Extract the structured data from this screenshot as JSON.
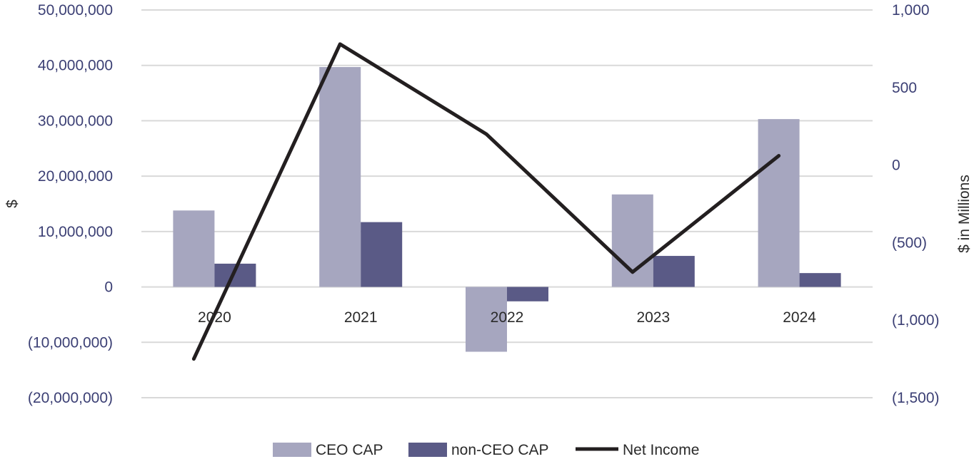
{
  "chart_data": {
    "type": "bar",
    "title": "",
    "categories": [
      "2020",
      "2021",
      "2022",
      "2023",
      "2024"
    ],
    "series": [
      {
        "name": "CEO CAP",
        "type": "bar",
        "axis": "left",
        "color": "#a6a6bf",
        "values": [
          13800000,
          39700000,
          -11700000,
          16700000,
          30300000
        ]
      },
      {
        "name": "non-CEO CAP",
        "type": "bar",
        "axis": "left",
        "color": "#5a5a86",
        "values": [
          4200000,
          11700000,
          -2600000,
          5600000,
          2500000
        ]
      },
      {
        "name": "Net Income",
        "type": "line",
        "axis": "right",
        "color": "#231f20",
        "values": [
          -1250,
          780,
          200,
          -690,
          60
        ]
      }
    ],
    "y_left": {
      "label": "$",
      "range": [
        -20000000,
        50000000
      ],
      "ticks": [
        50000000,
        40000000,
        30000000,
        20000000,
        10000000,
        0,
        -10000000,
        -20000000
      ],
      "tick_labels": [
        "50,000,000",
        "40,000,000",
        "30,000,000",
        "20,000,000",
        "10,000,000",
        "0",
        "(10,000,000)",
        "(20,000,000)"
      ]
    },
    "y_right": {
      "label": "$ in Millions",
      "range": [
        -1500,
        1000
      ],
      "ticks": [
        1000,
        500,
        0,
        -500,
        -1000,
        -1500
      ],
      "tick_labels": [
        "1,000",
        "500",
        "0",
        "(500)",
        "(1,000)",
        "(1,500)"
      ]
    },
    "grid": true,
    "legend_position": "bottom-center"
  }
}
